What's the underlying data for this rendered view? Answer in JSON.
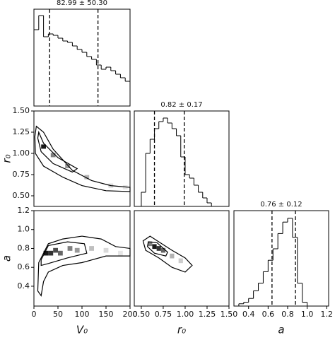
{
  "chart_data": [
    {
      "type": "histogram",
      "title": "82.99 ± 50.30",
      "xlim": [
        0,
        200
      ],
      "ylim": [
        0,
        137
      ],
      "bins": [
        0,
        10,
        20,
        30,
        40,
        50,
        60,
        70,
        80,
        90,
        100,
        110,
        120,
        130,
        140,
        150,
        160,
        170,
        180,
        190,
        200
      ],
      "values": [
        108,
        128,
        98,
        102,
        100,
        96,
        92,
        90,
        85,
        80,
        76,
        70,
        66,
        58,
        52,
        55,
        50,
        45,
        40,
        35
      ],
      "quantiles": [
        32.69,
        133.29
      ]
    },
    {
      "type": "contour",
      "xlim": [
        0,
        200
      ],
      "ylim": [
        0.375,
        1.5
      ],
      "ylabel": "r₀",
      "yticks": [
        {
          "value": 0.5,
          "label": "0.50"
        },
        0.75,
        {
          "value": 1,
          "label": "1.00"
        },
        1.25,
        {
          "value": 1.5,
          "label": "1.50"
        }
      ],
      "contours": [
        {
          "x": [
            5,
            20,
            40,
            80,
            120,
            160,
            200,
            200,
            150,
            100,
            60,
            20,
            3,
            2
          ],
          "y": [
            1.32,
            1.25,
            1.05,
            0.8,
            0.68,
            0.62,
            0.6,
            0.55,
            0.56,
            0.62,
            0.72,
            0.85,
            1.0,
            1.2
          ]
        },
        {
          "x": [
            10,
            20,
            50,
            90,
            80,
            40,
            15,
            8
          ],
          "y": [
            1.25,
            1.12,
            0.95,
            0.82,
            0.78,
            0.88,
            1.02,
            1.18
          ]
        }
      ],
      "cells": {
        "x": [
          20,
          40,
          70,
          110,
          160,
          190
        ],
        "y": [
          1.08,
          0.98,
          0.85,
          0.72,
          0.62,
          0.6
        ],
        "values": [
          0.9,
          0.5,
          0.4,
          0.3,
          0.15,
          0.1
        ]
      }
    },
    {
      "type": "histogram",
      "title": "0.82 ± 0.17",
      "xlim": [
        0.42,
        1.5
      ],
      "ylim": [
        0,
        135
      ],
      "bins": [
        0.5,
        0.55,
        0.6,
        0.65,
        0.7,
        0.75,
        0.8,
        0.85,
        0.9,
        0.95,
        1.0,
        1.05,
        1.1,
        1.15,
        1.2,
        1.25,
        1.3
      ],
      "values": [
        20,
        75,
        95,
        110,
        120,
        125,
        118,
        110,
        100,
        70,
        45,
        40,
        30,
        20,
        12,
        5
      ],
      "quantiles": [
        0.65,
        0.99
      ]
    },
    {
      "type": "contour",
      "xlim": [
        0,
        200
      ],
      "ylim": [
        0.19,
        1.2
      ],
      "ylabel": "a",
      "xlabel": "V₀",
      "xticks": [
        0,
        50,
        100,
        150,
        200
      ],
      "yticks": [
        0.4,
        0.6,
        0.8,
        {
          "value": 1,
          "label": "1.0"
        },
        1.2
      ],
      "contours": [
        {
          "x": [
            8,
            10,
            30,
            60,
            100,
            140,
            170,
            200,
            200,
            150,
            100,
            60,
            30,
            20,
            15
          ],
          "y": [
            0.35,
            0.65,
            0.85,
            0.9,
            0.93,
            0.9,
            0.82,
            0.8,
            0.72,
            0.72,
            0.65,
            0.62,
            0.55,
            0.45,
            0.3
          ]
        },
        {
          "x": [
            15,
            30,
            70,
            105,
            110,
            70,
            30,
            15
          ],
          "y": [
            0.68,
            0.83,
            0.87,
            0.85,
            0.75,
            0.7,
            0.64,
            0.62
          ]
        }
      ],
      "cells": {
        "x": [
          25,
          35,
          45,
          55,
          75,
          90,
          120,
          150,
          180
        ],
        "y": [
          0.75,
          0.75,
          0.78,
          0.75,
          0.8,
          0.78,
          0.8,
          0.78,
          0.75
        ],
        "values": [
          0.9,
          0.8,
          0.7,
          0.6,
          0.5,
          0.4,
          0.25,
          0.15,
          0.1
        ]
      }
    },
    {
      "type": "contour",
      "xlim": [
        0.42,
        1.5
      ],
      "ylim": [
        0.19,
        1.2
      ],
      "xlabel": "r₀",
      "xticks": [
        {
          "value": 0.5,
          "label": "0.50"
        },
        0.75,
        {
          "value": 1,
          "label": "1.00"
        },
        1.25,
        {
          "value": 1.5,
          "label": "1.50"
        }
      ],
      "contours": [
        {
          "x": [
            0.52,
            0.6,
            0.7,
            0.85,
            1.0,
            1.08,
            1.0,
            0.85,
            0.7,
            0.55
          ],
          "y": [
            0.88,
            0.93,
            0.87,
            0.78,
            0.7,
            0.62,
            0.55,
            0.6,
            0.7,
            0.78
          ]
        },
        {
          "x": [
            0.58,
            0.68,
            0.8,
            0.78,
            0.65,
            0.57
          ],
          "y": [
            0.87,
            0.86,
            0.76,
            0.72,
            0.75,
            0.82
          ]
        }
      ],
      "cells": {
        "x": [
          0.65,
          0.7,
          0.75,
          0.6,
          0.85,
          0.95
        ],
        "y": [
          0.82,
          0.8,
          0.78,
          0.85,
          0.72,
          0.67
        ],
        "values": [
          0.9,
          0.8,
          0.6,
          0.5,
          0.3,
          0.2
        ]
      }
    },
    {
      "type": "histogram",
      "title": "0.76 ± 0.12",
      "xlabel": "a",
      "xlim": [
        0.25,
        1.22
      ],
      "ylim": [
        0,
        125
      ],
      "xticks": [
        0.4,
        0.6,
        0.8,
        {
          "value": 1,
          "label": "1.0"
        },
        1.2
      ],
      "bins": [
        0.3,
        0.35,
        0.4,
        0.45,
        0.5,
        0.55,
        0.6,
        0.65,
        0.7,
        0.75,
        0.8,
        0.85,
        0.9,
        0.95,
        1.0
      ],
      "values": [
        3,
        5,
        10,
        20,
        30,
        45,
        60,
        75,
        95,
        110,
        115,
        90,
        30,
        5
      ],
      "quantiles": [
        0.64,
        0.88
      ]
    }
  ]
}
